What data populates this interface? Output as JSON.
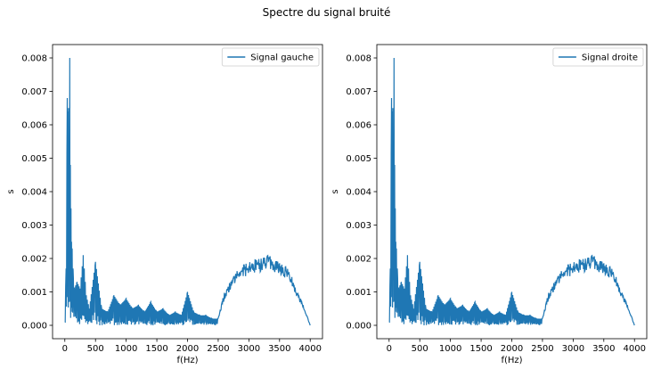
{
  "figure": {
    "suptitle": "Spectre du signal bruité"
  },
  "chart_data": [
    {
      "type": "line",
      "xlabel": "f(Hz)",
      "ylabel": "s",
      "xlim": [
        -200,
        4200
      ],
      "ylim": [
        -0.0004,
        0.0084
      ],
      "xticks": [
        0,
        500,
        1000,
        1500,
        2000,
        2500,
        3000,
        3500,
        4000
      ],
      "yticks": [
        0.0,
        0.001,
        0.002,
        0.003,
        0.004,
        0.005,
        0.006,
        0.007,
        0.008
      ],
      "ytick_labels": [
        "0.000",
        "0.001",
        "0.002",
        "0.003",
        "0.004",
        "0.005",
        "0.006",
        "0.007",
        "0.008"
      ],
      "grid": false,
      "legend_position": "top-right",
      "series": [
        {
          "name": "Signal gauche",
          "color": "#1f77b4",
          "x": [
            0,
            20,
            40,
            50,
            60,
            70,
            80,
            90,
            100,
            110,
            120,
            140,
            160,
            180,
            200,
            250,
            300,
            350,
            400,
            500,
            600,
            700,
            800,
            900,
            1000,
            1100,
            1200,
            1300,
            1400,
            1500,
            1600,
            1700,
            1800,
            1900,
            2000,
            2100,
            2200,
            2300,
            2400,
            2500,
            2600,
            2700,
            2800,
            2900,
            3000,
            3100,
            3200,
            3300,
            3400,
            3500,
            3600,
            3700,
            3800,
            3900,
            4000
          ],
          "values": [
            0.0001,
            0.0017,
            0.0068,
            0.0064,
            0.0065,
            0.0055,
            0.008,
            0.0048,
            0.0035,
            0.0025,
            0.0023,
            0.0014,
            0.001,
            0.0012,
            0.0013,
            0.0011,
            0.0021,
            0.0009,
            0.0005,
            0.0019,
            0.0005,
            0.0004,
            0.0009,
            0.0006,
            0.0008,
            0.0005,
            0.0006,
            0.0004,
            0.0007,
            0.0004,
            0.0005,
            0.0003,
            0.0004,
            0.0003,
            0.001,
            0.0004,
            0.0003,
            0.0003,
            0.0002,
            0.0002,
            0.0009,
            0.0012,
            0.0015,
            0.0016,
            0.0017,
            0.0018,
            0.0018,
            0.0019,
            0.0018,
            0.0017,
            0.0016,
            0.0013,
            0.0009,
            0.0005,
            0.0
          ]
        }
      ]
    },
    {
      "type": "line",
      "xlabel": "f(Hz)",
      "ylabel": "s",
      "xlim": [
        -200,
        4200
      ],
      "ylim": [
        -0.0004,
        0.0084
      ],
      "xticks": [
        0,
        500,
        1000,
        1500,
        2000,
        2500,
        3000,
        3500,
        4000
      ],
      "yticks": [
        0.0,
        0.001,
        0.002,
        0.003,
        0.004,
        0.005,
        0.006,
        0.007,
        0.008
      ],
      "ytick_labels": [
        "0.000",
        "0.001",
        "0.002",
        "0.003",
        "0.004",
        "0.005",
        "0.006",
        "0.007",
        "0.008"
      ],
      "grid": false,
      "legend_position": "top-right",
      "series": [
        {
          "name": "Signal droite",
          "color": "#1f77b4",
          "x": [
            0,
            20,
            40,
            50,
            60,
            70,
            80,
            90,
            100,
            110,
            120,
            140,
            160,
            180,
            200,
            250,
            300,
            350,
            400,
            500,
            600,
            700,
            800,
            900,
            1000,
            1100,
            1200,
            1300,
            1400,
            1500,
            1600,
            1700,
            1800,
            1900,
            2000,
            2100,
            2200,
            2300,
            2400,
            2500,
            2600,
            2700,
            2800,
            2900,
            3000,
            3100,
            3200,
            3300,
            3400,
            3500,
            3600,
            3700,
            3800,
            3900,
            4000
          ],
          "values": [
            0.0001,
            0.0017,
            0.0068,
            0.0064,
            0.0065,
            0.0055,
            0.008,
            0.0048,
            0.0035,
            0.0025,
            0.0023,
            0.0014,
            0.001,
            0.0012,
            0.0013,
            0.0011,
            0.0021,
            0.0009,
            0.0005,
            0.0019,
            0.0005,
            0.0004,
            0.0009,
            0.0006,
            0.0008,
            0.0005,
            0.0006,
            0.0004,
            0.0007,
            0.0004,
            0.0005,
            0.0003,
            0.0004,
            0.0003,
            0.001,
            0.0004,
            0.0003,
            0.0003,
            0.0002,
            0.0002,
            0.0009,
            0.0012,
            0.0015,
            0.0016,
            0.0017,
            0.0018,
            0.0018,
            0.0019,
            0.0018,
            0.0017,
            0.0016,
            0.0013,
            0.0009,
            0.0005,
            0.0
          ]
        }
      ]
    }
  ]
}
